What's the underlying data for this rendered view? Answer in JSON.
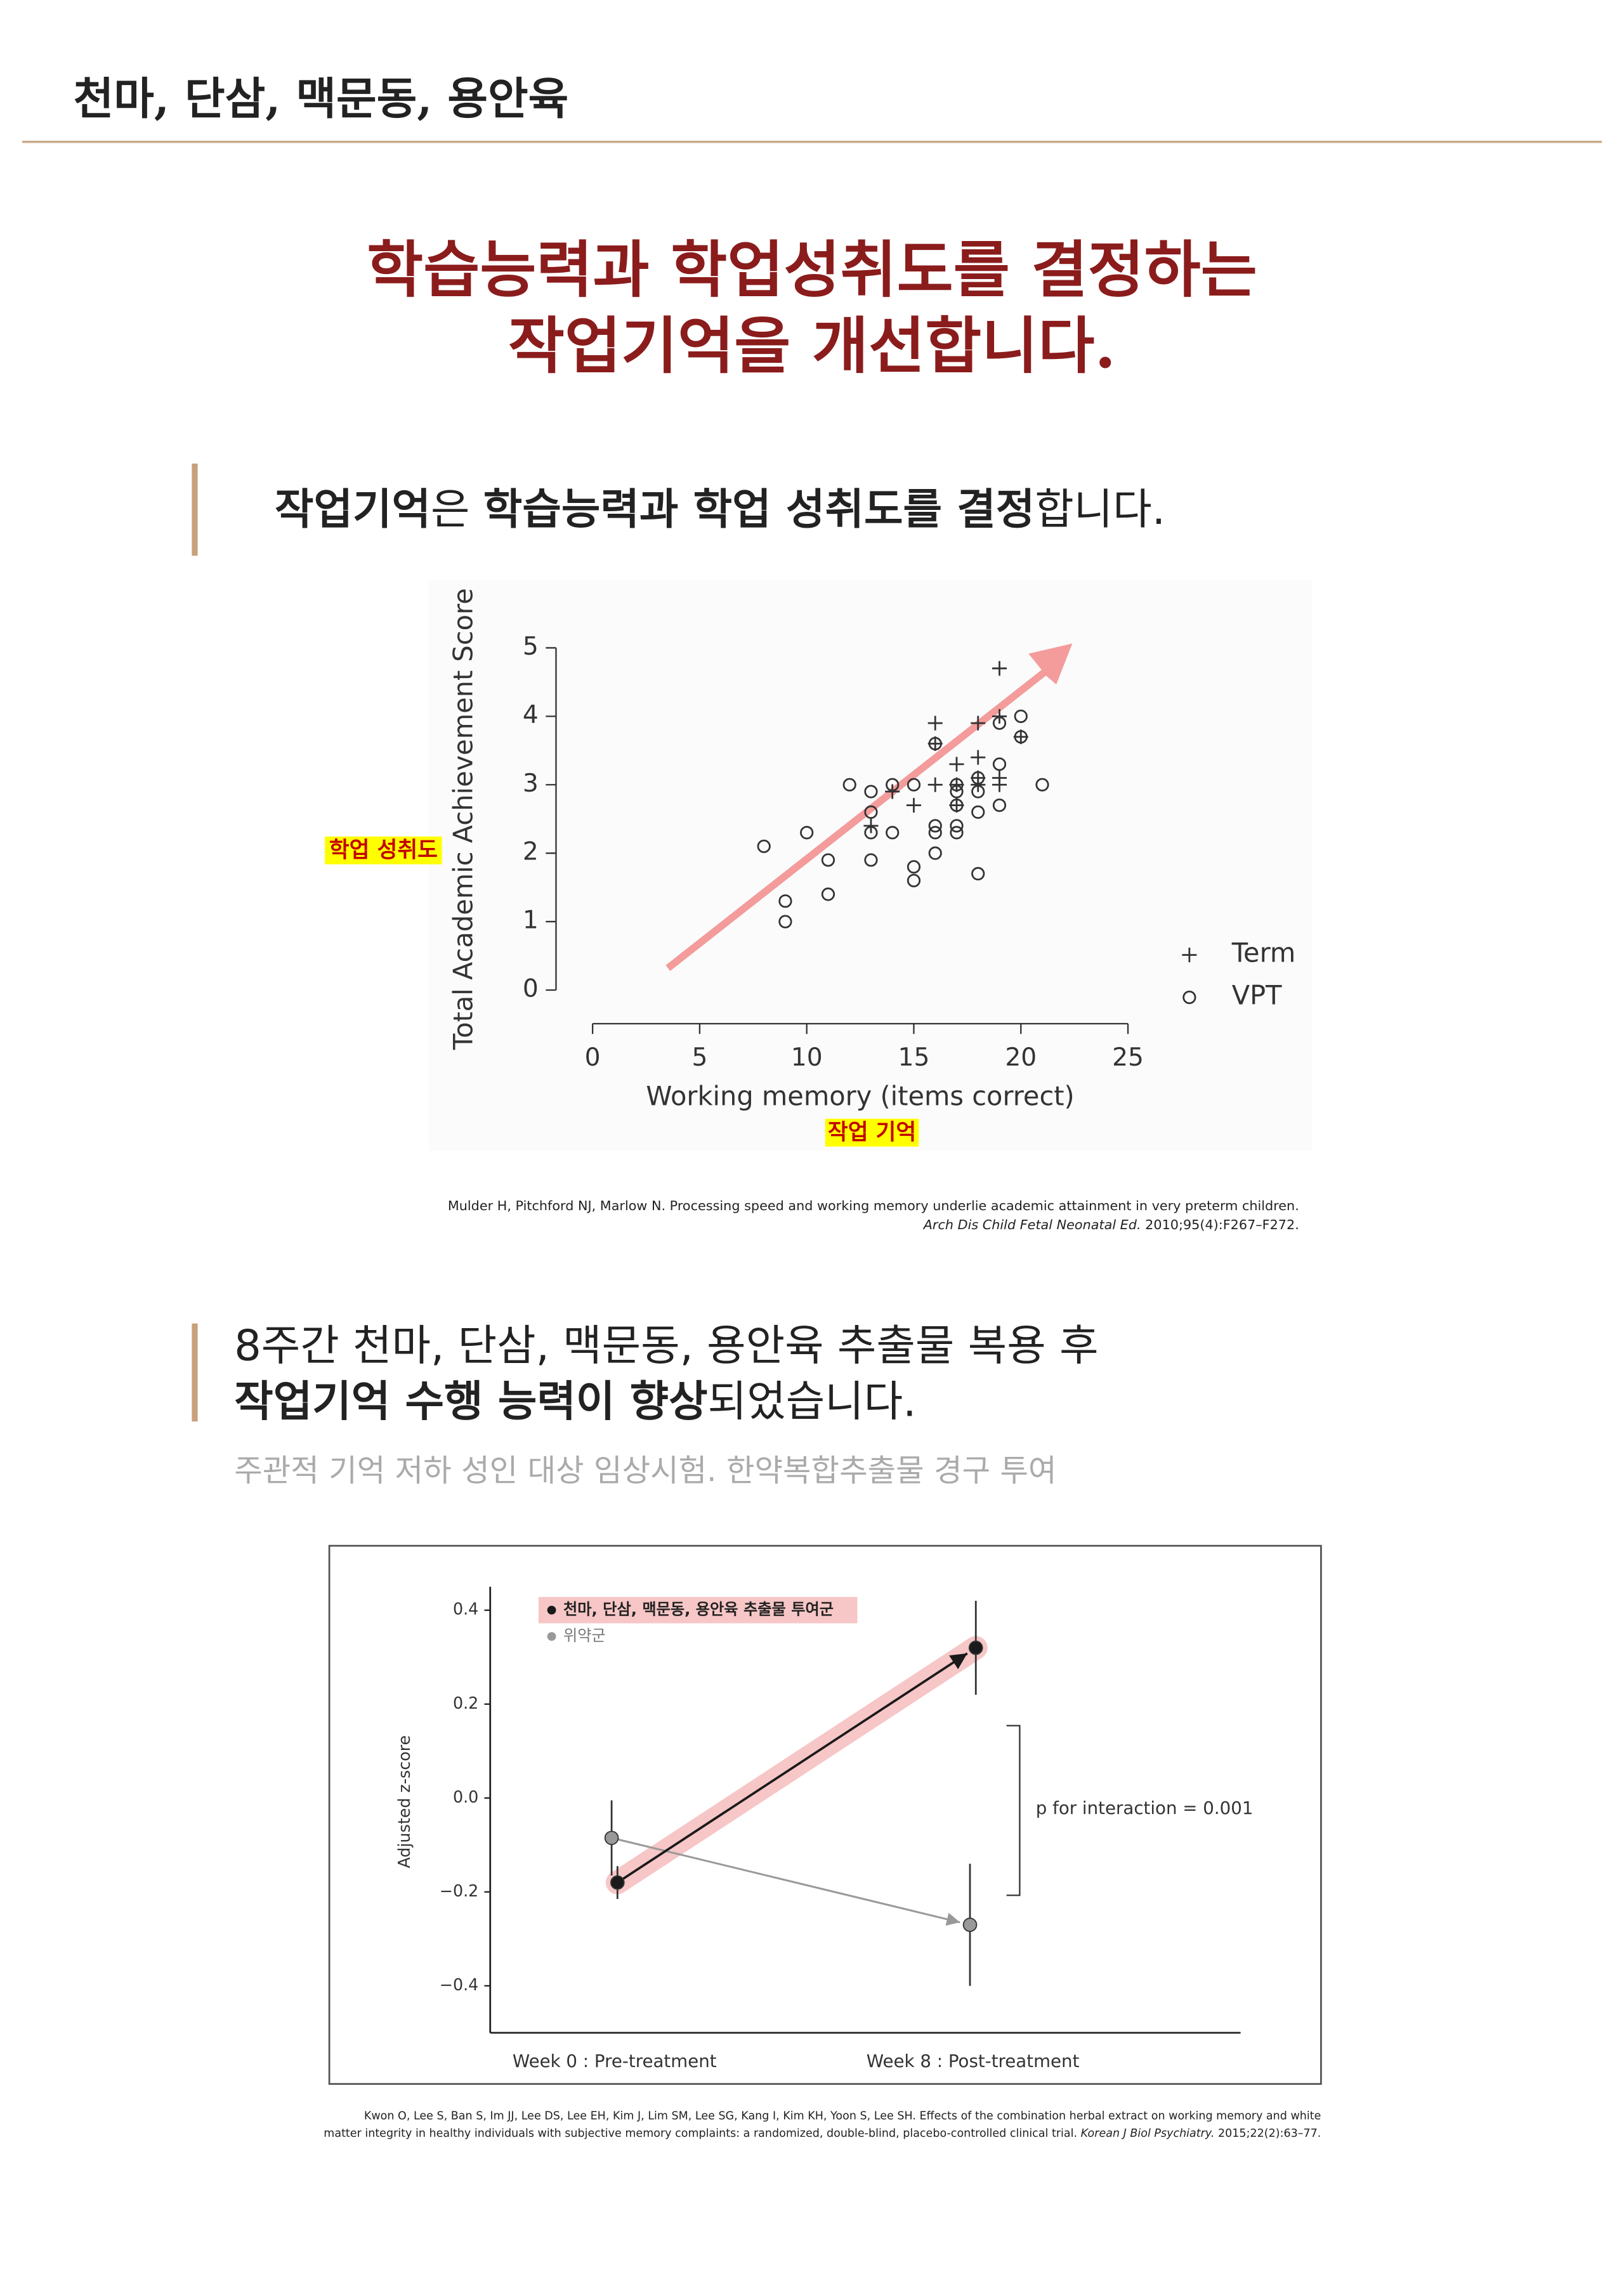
{
  "header": {
    "title": "천마, 단삼, 맥문동, 용안육"
  },
  "headline": {
    "lines": [
      "학습능력과 학업성취도를 결정하는",
      "작업기억을 개선합니다."
    ]
  },
  "section_1": {
    "heading": [
      "작업기억",
      "은 ",
      "학습능력과 학업 성취도를 결정",
      "합니다."
    ],
    "citation": [
      "Mulder H, Pitchford NJ, Marlow N. Processing speed and working memory underlie academic attainment in very preterm children.",
      "Arch Dis Child Fetal Neonatal Ed.",
      " 2010;95(4):F267–F272."
    ]
  },
  "section_2": {
    "heading_line1": "8주간 천마, 단삼, 맥문동, 용안육 추출물 복용 후",
    "heading_line2": [
      "작업기억 수행 능력이 향상",
      "되었습니다."
    ],
    "subtitle": "주관적 기억 저하 성인 대상 임상시험. 한약복합추출물 경구 투여",
    "citation": [
      "Kwon O, Lee S, Ban S, Im JJ, Lee DS, Lee EH, Kim J, Lim SM, Lee SG, Kang I, Kim KH, Yoon S, Lee SH. Effects of the combination herbal extract on working memory and white",
      "matter integrity in healthy individuals with subjective memory complaints: a randomized, double-blind, placebo-controlled clinical trial. ",
      "Korean J Biol Psychiatry.",
      " 2015;22(2):63–77."
    ]
  },
  "chart_data": [
    {
      "type": "scatter",
      "x_label": "Working memory (items correct)",
      "y_label": "Total Academic Achievement Score",
      "x_note": "작업 기억",
      "y_note": "학업 성취도",
      "xlim": [
        0,
        25
      ],
      "xticks": [
        0,
        5,
        10,
        15,
        20,
        25
      ],
      "ylim": [
        0,
        5
      ],
      "yticks": [
        0,
        1,
        2,
        3,
        4,
        5
      ],
      "series": [
        {
          "name": "Term",
          "marker": "+",
          "color": "#333333",
          "x": [
            19,
            16,
            18,
            19,
            20,
            17,
            16,
            17,
            18,
            18,
            19,
            19,
            15,
            13,
            14,
            18,
            17,
            16
          ],
          "values": [
            4.7,
            3.9,
            3.9,
            4.0,
            3.7,
            3.3,
            3.0,
            3.0,
            3.4,
            3.1,
            3.1,
            3.0,
            2.7,
            2.4,
            2.9,
            3.0,
            2.7,
            3.6
          ]
        },
        {
          "name": "VPT",
          "marker": "o",
          "color": "#333333",
          "x": [
            8,
            9,
            9,
            10,
            11,
            11,
            12,
            13,
            13,
            13,
            13,
            14,
            14,
            15,
            15,
            15,
            16,
            16,
            16,
            16,
            17,
            17,
            17,
            17,
            17,
            18,
            18,
            18,
            18,
            19,
            19,
            19,
            20,
            20,
            21
          ],
          "values": [
            2.1,
            1.3,
            1.0,
            2.3,
            1.9,
            1.4,
            3.0,
            2.9,
            2.6,
            2.3,
            1.9,
            3.0,
            2.3,
            3.0,
            1.8,
            1.6,
            3.6,
            2.4,
            2.3,
            2.0,
            3.0,
            2.9,
            2.4,
            2.3,
            2.7,
            3.1,
            2.9,
            2.6,
            1.7,
            3.9,
            3.3,
            2.7,
            4.0,
            3.7,
            3.0
          ]
        }
      ]
    },
    {
      "type": "line",
      "y_label": "Adjusted z-score",
      "annotation": "p for interaction = 0.001",
      "categories": [
        "Week 0 : Pre-treatment",
        "Week 8 : Post-treatment"
      ],
      "ylim": [
        -0.5,
        0.45
      ],
      "yticks": [
        0.4,
        0.2,
        {
          "value": 0,
          "label": "0.0"
        },
        {
          "value": -0.2,
          "label": "−0.2"
        },
        {
          "value": -0.4,
          "label": "−0.4"
        }
      ],
      "series": [
        {
          "name": "천마, 단삼, 맥문동, 용안육 추출물 투여군",
          "color": "#1a1a1a",
          "values": [
            -0.18,
            0.32
          ],
          "errors": [
            0.035,
            0.1
          ]
        },
        {
          "name": "위약군",
          "color": "#999999",
          "values": [
            -0.085,
            -0.27
          ],
          "errors": [
            0.08,
            0.13
          ]
        }
      ]
    }
  ]
}
